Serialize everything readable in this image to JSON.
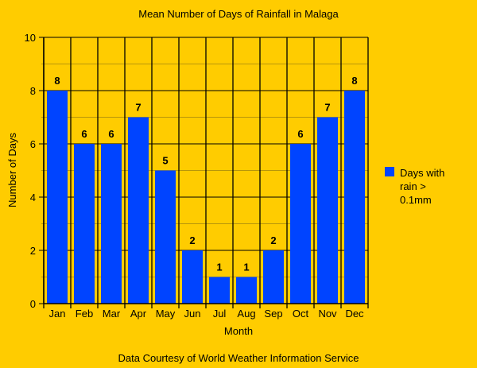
{
  "chart_data": {
    "type": "bar",
    "title": "Mean Number of Days of Rainfall in Malaga",
    "xlabel": "Month",
    "ylabel": "Number of Days",
    "categories": [
      "Jan",
      "Feb",
      "Mar",
      "Apr",
      "May",
      "Jun",
      "Jul",
      "Aug",
      "Sep",
      "Oct",
      "Nov",
      "Dec"
    ],
    "series": [
      {
        "name": "Days with rain > 0.1mm",
        "legend_lines": [
          "Days with",
          "rain >",
          "0.1mm"
        ],
        "values": [
          8,
          6,
          6,
          7,
          5,
          2,
          1,
          1,
          2,
          6,
          7,
          8
        ],
        "color": "#0044FF"
      }
    ],
    "ylim": [
      0,
      10
    ],
    "yticks": [
      0,
      2,
      4,
      6,
      8,
      10
    ],
    "grid": true,
    "legend_position": "right",
    "footnote": "Data Courtesy of World Weather Information Service"
  },
  "colors": {
    "background": "#FFCC00",
    "minor_grid": "#B8960A"
  }
}
